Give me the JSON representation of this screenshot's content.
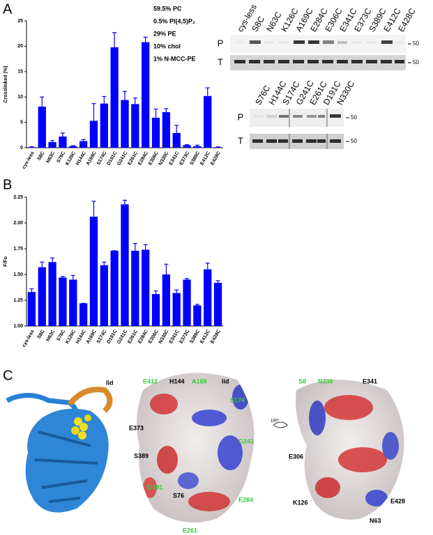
{
  "panels": [
    "A",
    "B",
    "C"
  ],
  "chart_data": [
    {
      "type": "bar",
      "ylabel": "Crosslinked (%)",
      "color": "#0000ff",
      "annotations": [
        "59.5% PC",
        "0.5% PI(4,5)P₂",
        "29% PE",
        "10% chol",
        "1% N-MCC-PE"
      ],
      "categories": [
        "cys-less",
        "S8C",
        "N63C",
        "S76C",
        "K126C",
        "H144C",
        "A169C",
        "S174C",
        "D191C",
        "G241C",
        "E261C",
        "E284C",
        "E306C",
        "N330C",
        "E341C",
        "E373C",
        "S389C",
        "E412C",
        "E428C"
      ],
      "values": [
        0.1,
        8.1,
        1.1,
        2.2,
        0.3,
        1.3,
        5.3,
        8.7,
        19.8,
        9.4,
        8.6,
        20.8,
        5.9,
        7.0,
        2.9,
        0.5,
        0.3,
        10.2,
        0.1
      ],
      "errors": [
        0.1,
        1.9,
        0.3,
        0.7,
        0.1,
        0.3,
        3.4,
        1.4,
        2.9,
        1.7,
        1.2,
        1.0,
        1.7,
        0.7,
        1.5,
        0.1,
        0.2,
        1.6,
        0.05
      ],
      "ylim": [
        0,
        25
      ],
      "yticks": [
        0,
        5,
        10,
        15,
        20,
        25
      ]
    },
    {
      "type": "bar",
      "ylabel": "F/Fo",
      "color": "#0000ff",
      "categories": [
        "cys-less",
        "S8C",
        "N63C",
        "S76C",
        "K126C",
        "H144C",
        "A169C",
        "S174C",
        "D191C",
        "G241C",
        "E261C",
        "E284C",
        "E306C",
        "N330C",
        "E341C",
        "E373C",
        "S389C",
        "E412C",
        "E428C"
      ],
      "values": [
        1.33,
        1.57,
        1.62,
        1.47,
        1.45,
        1.22,
        2.06,
        1.59,
        1.73,
        2.18,
        1.73,
        1.74,
        1.31,
        1.5,
        1.32,
        1.45,
        1.2,
        1.55,
        1.42
      ],
      "errors": [
        0.03,
        0.05,
        0.04,
        0.01,
        0.04,
        0,
        0.15,
        0.03,
        0,
        0.04,
        0.07,
        0.05,
        0.03,
        0.1,
        0.03,
        0.01,
        0.01,
        0.06,
        0.02
      ],
      "ylim": [
        1.0,
        2.25
      ],
      "yticks": [
        {
          "value": 1.0,
          "label": "1.00"
        },
        {
          "value": 1.25,
          "label": "1.25"
        },
        {
          "value": 1.5,
          "label": "1.50"
        },
        {
          "value": 1.75,
          "label": "1.75"
        },
        {
          "value": 2.0,
          "label": "2.00"
        },
        {
          "value": 2.25,
          "label": "2.25"
        }
      ]
    }
  ],
  "gels": [
    {
      "lanes": [
        "cys-less",
        "S8C",
        "N63C",
        "K126C",
        "A169C",
        "E284C",
        "E306C",
        "E341C",
        "E373C",
        "S389C",
        "E412C",
        "E428C"
      ],
      "rows": [
        "P",
        "T"
      ],
      "marker": "50"
    },
    {
      "lanes": [
        "S76C",
        "H144C",
        "S174C",
        "G241C",
        "E261C",
        "D191C",
        "N330C"
      ],
      "rows": [
        "P",
        "T"
      ],
      "marker": "50"
    }
  ],
  "structure": {
    "ribbon_label": "lid",
    "front": [
      "E412",
      "H144",
      "A169",
      "lid",
      "S174",
      "E373",
      "G241",
      "S389",
      "D191",
      "S76",
      "E284",
      "E261"
    ],
    "rotation": "180°",
    "back": [
      "S8",
      "N330",
      "E341",
      "E306",
      "K126",
      "E428",
      "N63"
    ]
  }
}
